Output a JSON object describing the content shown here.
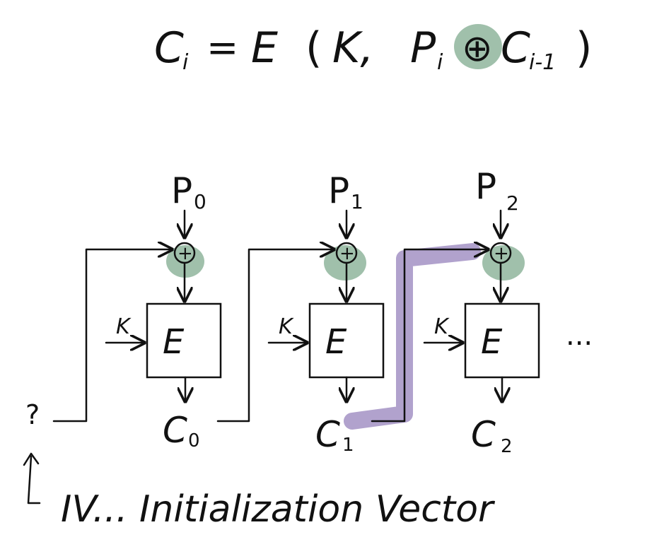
{
  "formula": {
    "lhs": "C",
    "lhs_sub": "i",
    "eq": "=",
    "func": "E",
    "open": "(",
    "key": "K,",
    "p": "P",
    "p_sub": "i",
    "xor": "⊕",
    "c": "C",
    "c_sub": "i-1",
    "close": ")"
  },
  "blocks": [
    {
      "plain": "P",
      "plain_sub": "0",
      "key": "K",
      "cipher_label": "E",
      "out": "C",
      "out_sub": "0"
    },
    {
      "plain": "P",
      "plain_sub": "1",
      "key": "K",
      "cipher_label": "E",
      "out": "C",
      "out_sub": "1"
    },
    {
      "plain": "P",
      "plain_sub": "2",
      "key": "K",
      "cipher_label": "E",
      "out": "C",
      "out_sub": "2"
    }
  ],
  "xor_symbol": "+",
  "iv_marker": "?",
  "ellipsis": "...",
  "iv_note": "IV... Initialization Vector",
  "colors": {
    "xor_highlight": "#8fb59c",
    "path_highlight": "#a998c8",
    "ink": "#111111"
  }
}
